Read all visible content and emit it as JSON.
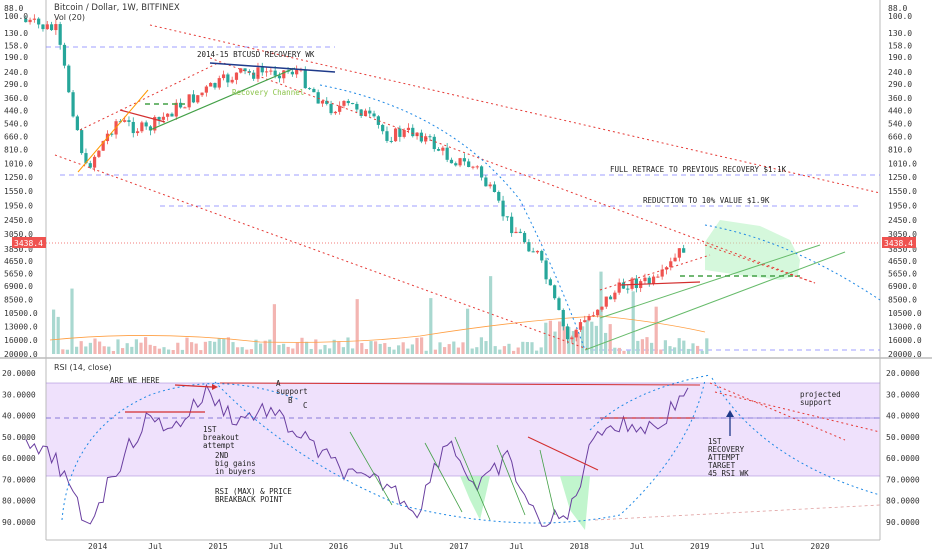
{
  "header": {
    "symbol_line": "Bitcoin / Dollar, 1W, BITFINEX",
    "volume_label": "Vol (20)"
  },
  "rsi_header": {
    "label": "RSI (14, close)"
  },
  "price_tag": {
    "value": "3438.4",
    "bg_color": "#ef5350"
  },
  "colors": {
    "up": "#26a69a",
    "down": "#ef5350",
    "rsi_line": "#6a3fa0",
    "rsi_band": "#ead7fb",
    "green_zone": "#b2f2c0",
    "volume_up": "#a9d8d0",
    "volume_down": "#f3b5b2"
  },
  "annotations": {
    "recovery_wk": "2014-15 BTCUSD RECOVERY WK",
    "recovery_channel": "Recovery Channel",
    "full_retrace": "FULL RETRACE TO PREVIOUS RECOVERY $1.1K",
    "reduction": "REDUCTION TO 10% VALUE $1.9K",
    "are_we_here": "ARE WE HERE",
    "a_support": [
      "A",
      "support"
    ],
    "b_label": "B",
    "c_label": "C",
    "breakout": [
      "1ST",
      "breakout",
      "attempt"
    ],
    "big_gains": [
      "2ND",
      "big gains",
      "in buyers"
    ],
    "rsi_max": [
      "RSI (MAX) & PRICE",
      "BREAKBACK POINT"
    ],
    "recovery_attempt": [
      "1ST",
      "RECOVERY",
      "ATTEMPT",
      "TARGET",
      "45 RSI WK"
    ],
    "projected": [
      "projected",
      "support"
    ]
  },
  "chart_data": [
    {
      "type": "line",
      "title": "Bitcoin / Dollar, 1W, BITFINEX",
      "y_scale": "log-inverted",
      "y_ticks": [
        "88.0",
        "100.0",
        "130.0",
        "158.0",
        "190.0",
        "240.0",
        "290.0",
        "360.0",
        "440.0",
        "540.0",
        "660.0",
        "810.0",
        "1010.0",
        "1250.0",
        "1550.0",
        "1950.0",
        "2450.0",
        "3050.0",
        "3850.0",
        "4650.0",
        "5650.0",
        "6900.0",
        "8500.0",
        "10500.0",
        "13000.0",
        "16000.0",
        "20000.0"
      ],
      "x_ticks": [
        "2014",
        "Jul",
        "2015",
        "Jul",
        "2016",
        "Jul",
        "2017",
        "Jul",
        "2018",
        "Jul",
        "2019",
        "Jul",
        "2020"
      ],
      "series": [
        {
          "name": "",
          "x": [
            "2013-06",
            "2013-09",
            "2013-12",
            "2014-03",
            "2014-06",
            "2014-09",
            "2014-12",
            "2015-03",
            "2015-06",
            "2015-09",
            "2015-12",
            "2016-03",
            "2016-06",
            "2016-09",
            "2016-12",
            "2017-03",
            "2017-06",
            "2017-09",
            "2017-12",
            "2018-03",
            "2018-06",
            "2018-09",
            "2018-12"
          ],
          "values": [
            110,
            125,
            1100,
            520,
            600,
            420,
            320,
            250,
            240,
            235,
            420,
            410,
            650,
            610,
            900,
            1100,
            2500,
            4200,
            16000,
            9500,
            6500,
            6500,
            3438.4
          ]
        }
      ],
      "levels": [
        {
          "label": "FULL RETRACE TO PREVIOUS RECOVERY $1.1K",
          "value": 1100
        },
        {
          "label": "REDUCTION TO 10% VALUE $1.9K",
          "value": 1900
        }
      ]
    },
    {
      "type": "line",
      "title": "RSI (14, close)",
      "y_ticks": [
        "20.0000",
        "30.0000",
        "40.0000",
        "50.0000",
        "60.0000",
        "70.0000",
        "80.0000",
        "90.0000"
      ],
      "series": [
        {
          "name": "",
          "x": [
            "2013-06",
            "2013-09",
            "2013-12",
            "2014-03",
            "2014-06",
            "2014-09",
            "2014-12",
            "2015-03",
            "2015-06",
            "2015-09",
            "2015-12",
            "2016-03",
            "2016-06",
            "2016-09",
            "2016-12",
            "2017-03",
            "2017-06",
            "2017-09",
            "2017-12",
            "2018-03",
            "2018-06",
            "2018-09",
            "2018-12"
          ],
          "values": [
            55,
            60,
            92,
            65,
            42,
            45,
            29,
            42,
            37,
            48,
            60,
            70,
            72,
            85,
            50,
            75,
            60,
            90,
            88,
            45,
            45,
            45,
            27
          ]
        }
      ]
    }
  ]
}
